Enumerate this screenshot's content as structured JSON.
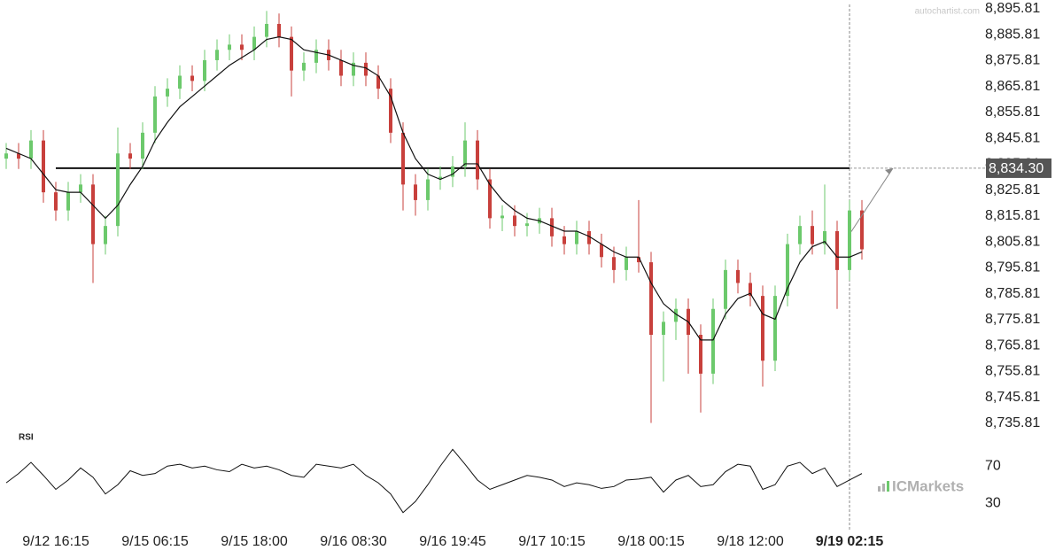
{
  "chart_data": {
    "type": "candlestick",
    "watermark": "autochartist.com",
    "brand": "ICMarkets",
    "categories": [
      null,
      null,
      null,
      null,
      "9/12 16:15",
      null,
      null,
      null,
      null,
      null,
      null,
      null,
      "9/15 06:15",
      null,
      null,
      null,
      null,
      null,
      null,
      null,
      "9/15 18:00",
      null,
      null,
      null,
      null,
      null,
      null,
      null,
      "9/16 08:30",
      null,
      null,
      null,
      null,
      null,
      null,
      null,
      "9/16 19:45",
      null,
      null,
      null,
      null,
      null,
      null,
      null,
      "9/17 10:15",
      null,
      null,
      null,
      null,
      null,
      null,
      null,
      "9/18 00:15",
      null,
      null,
      null,
      null,
      null,
      null,
      null,
      "9/18 12:00",
      null,
      null,
      null,
      null,
      null,
      null,
      null,
      "9/19 02:15",
      null
    ],
    "open": [
      8838,
      8840,
      8838,
      8845,
      8825,
      8818,
      8825,
      8828,
      8805,
      8812,
      8840,
      8838,
      8848,
      8862,
      8865,
      8870,
      8868,
      8876,
      8880,
      8882,
      8880,
      8885,
      8890,
      8885,
      8872,
      8875,
      8880,
      8876,
      8870,
      8875,
      8870,
      8865,
      8848,
      8828,
      8822,
      8830,
      8831,
      8835,
      8845,
      8830,
      8815,
      8816,
      8812,
      8813,
      8815,
      8808,
      8805,
      8810,
      8805,
      8800,
      8795,
      8800,
      8798,
      8770,
      8775,
      8780,
      8770,
      8755,
      8780,
      8795,
      8790,
      8785,
      8760,
      8785,
      8805,
      8812,
      8805,
      8810,
      8795,
      8818
    ],
    "high": [
      8844,
      8844,
      8849,
      8849,
      8829,
      8829,
      8832,
      8832,
      8816,
      8850,
      8844,
      8852,
      8866,
      8869,
      8874,
      8874,
      8880,
      8884,
      8886,
      8886,
      8889,
      8895,
      8894,
      8889,
      8879,
      8884,
      8884,
      8880,
      8879,
      8879,
      8874,
      8869,
      8852,
      8832,
      8834,
      8835,
      8839,
      8852,
      8849,
      8834,
      8820,
      8820,
      8817,
      8819,
      8819,
      8812,
      8814,
      8814,
      8809,
      8804,
      8804,
      8822,
      8802,
      8779,
      8784,
      8784,
      8774,
      8784,
      8799,
      8799,
      8794,
      8789,
      8789,
      8809,
      8816,
      8818,
      8828,
      8814,
      8822,
      8822
    ],
    "low": [
      8834,
      8834,
      8834,
      8821,
      8814,
      8814,
      8821,
      8790,
      8801,
      8808,
      8834,
      8834,
      8844,
      8858,
      8861,
      8864,
      8864,
      8872,
      8876,
      8876,
      8876,
      8881,
      8881,
      8862,
      8868,
      8871,
      8872,
      8866,
      8866,
      8866,
      8861,
      8844,
      8818,
      8816,
      8818,
      8826,
      8827,
      8831,
      8826,
      8811,
      8810,
      8808,
      8808,
      8809,
      8804,
      8801,
      8801,
      8801,
      8796,
      8790,
      8791,
      8794,
      8736,
      8752,
      8768,
      8755,
      8740,
      8751,
      8776,
      8786,
      8781,
      8750,
      8756,
      8781,
      8801,
      8801,
      8801,
      8780,
      8791,
      8799
    ],
    "close": [
      8840,
      8838,
      8845,
      8825,
      8818,
      8825,
      8828,
      8805,
      8812,
      8840,
      8838,
      8848,
      8862,
      8865,
      8870,
      8868,
      8876,
      8880,
      8882,
      8880,
      8885,
      8890,
      8885,
      8872,
      8875,
      8880,
      8876,
      8870,
      8875,
      8870,
      8865,
      8848,
      8828,
      8822,
      8830,
      8831,
      8835,
      8845,
      8830,
      8815,
      8816,
      8812,
      8813,
      8815,
      8808,
      8805,
      8810,
      8805,
      8800,
      8795,
      8800,
      8798,
      8770,
      8775,
      8780,
      8770,
      8755,
      8780,
      8795,
      8790,
      8785,
      8760,
      8785,
      8805,
      8812,
      8805,
      8810,
      8795,
      8818,
      8803
    ],
    "up_color": "#6cc96c",
    "down_color": "#c8403c",
    "ma": {
      "color": "#111111",
      "values": [
        8842,
        8840,
        8838,
        8832,
        8826,
        8825,
        8825,
        8820,
        8815,
        8820,
        8828,
        8835,
        8845,
        8852,
        8858,
        8862,
        8866,
        8870,
        8874,
        8877,
        8880,
        8884,
        8885,
        8884,
        8880,
        8879,
        8878,
        8876,
        8874,
        8873,
        8870,
        8862,
        8848,
        8838,
        8832,
        8830,
        8832,
        8836,
        8836,
        8828,
        8822,
        8818,
        8815,
        8814,
        8812,
        8810,
        8810,
        8808,
        8805,
        8802,
        8800,
        8800,
        8790,
        8782,
        8778,
        8775,
        8768,
        8768,
        8778,
        8784,
        8786,
        8778,
        8776,
        8788,
        8798,
        8804,
        8806,
        8800,
        8800,
        8802
      ]
    },
    "level": {
      "value": 8834.3,
      "label": "8,834.30"
    },
    "ylim": [
      8731.71,
      8899.23
    ],
    "yticks": [
      {
        "value": 8895.81,
        "label": "8,895.81"
      },
      {
        "value": 8885.81,
        "label": "8,885.81"
      },
      {
        "value": 8875.81,
        "label": "8,875.81"
      },
      {
        "value": 8865.81,
        "label": "8,865.81"
      },
      {
        "value": 8855.81,
        "label": "8,855.81"
      },
      {
        "value": 8845.81,
        "label": "8,845.81"
      },
      {
        "value": 8835.81,
        "label": "8,835.81"
      },
      {
        "value": 8825.81,
        "label": "8,825.81"
      },
      {
        "value": 8815.81,
        "label": "8,815.81"
      },
      {
        "value": 8805.81,
        "label": "8,805.81"
      },
      {
        "value": 8795.81,
        "label": "8,795.81"
      },
      {
        "value": 8785.81,
        "label": "8,785.81"
      },
      {
        "value": 8775.81,
        "label": "8,775.81"
      },
      {
        "value": 8765.81,
        "label": "8,765.81"
      },
      {
        "value": 8755.81,
        "label": "8,755.81"
      },
      {
        "value": 8745.81,
        "label": "8,745.81"
      },
      {
        "value": 8735.81,
        "label": "8,735.81"
      }
    ],
    "grid": false,
    "rsi": {
      "title": "RSI",
      "color": "#111111",
      "ylim": [
        14,
        95
      ],
      "yticks": [
        30,
        70
      ],
      "values": [
        52,
        62,
        74,
        60,
        45,
        55,
        68,
        58,
        40,
        50,
        65,
        60,
        62,
        70,
        72,
        68,
        70,
        66,
        64,
        72,
        68,
        70,
        66,
        60,
        58,
        72,
        70,
        68,
        72,
        60,
        52,
        40,
        20,
        32,
        50,
        70,
        88,
        72,
        55,
        45,
        50,
        55,
        60,
        58,
        55,
        48,
        52,
        50,
        46,
        48,
        55,
        56,
        58,
        42,
        55,
        60,
        48,
        50,
        64,
        72,
        70,
        45,
        50,
        70,
        74,
        62,
        68,
        48,
        55,
        62
      ]
    }
  }
}
